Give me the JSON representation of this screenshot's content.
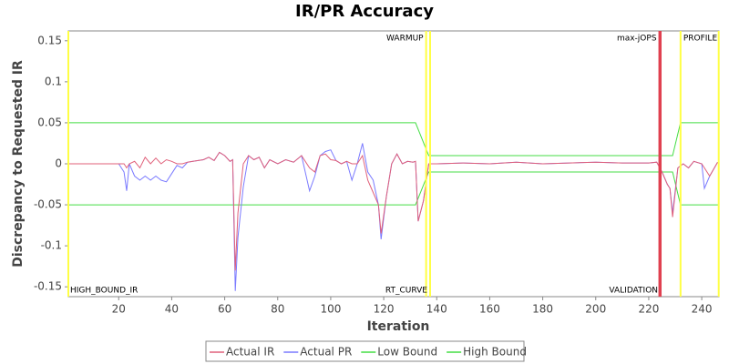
{
  "chart_data": {
    "type": "line",
    "title": "IR/PR Accuracy",
    "x_label": "Iteration",
    "y_label": "Discrepancy to Requested IR",
    "xlim": [
      1,
      246.5
    ],
    "ylim": [
      -0.162,
      0.162
    ],
    "xticks": [
      20,
      40,
      60,
      80,
      100,
      120,
      140,
      160,
      180,
      200,
      220,
      240
    ],
    "yticks": [
      0.15,
      0.1,
      0.05,
      0.0,
      -0.05,
      -0.1,
      -0.15
    ],
    "series": [
      {
        "name": "Actual IR",
        "color": "#e0607a",
        "x": [
          1,
          20,
          22,
          23,
          24,
          26,
          28,
          30,
          32,
          34,
          36,
          38,
          40,
          42,
          44,
          46,
          48,
          50,
          52,
          54,
          56,
          58,
          60,
          62,
          63,
          64,
          65,
          67,
          69,
          71,
          73,
          75,
          77,
          80,
          83,
          86,
          89,
          92,
          94,
          96,
          98,
          100,
          102,
          104,
          106,
          108,
          110,
          112,
          114,
          116,
          118,
          119,
          121,
          123,
          125,
          127,
          129,
          131,
          132,
          133,
          135,
          137,
          140,
          150,
          160,
          170,
          180,
          190,
          200,
          210,
          220,
          223,
          225,
          227,
          228,
          229,
          231,
          233,
          235,
          237,
          240,
          241,
          243,
          246
        ],
        "values": [
          0,
          0,
          0,
          -0.005,
          0,
          0.003,
          -0.005,
          0.008,
          0,
          0.007,
          0,
          0.005,
          0.003,
          0,
          0,
          0.002,
          0.003,
          0.004,
          0.005,
          0.008,
          0.004,
          0.014,
          0.01,
          0.003,
          0.005,
          -0.13,
          -0.06,
          0,
          0.01,
          0.005,
          0.008,
          -0.005,
          0.005,
          0,
          0.005,
          0.002,
          0.01,
          -0.005,
          -0.01,
          0.01,
          0.012,
          0.005,
          0.004,
          0,
          0.003,
          0,
          0,
          0.01,
          -0.02,
          -0.035,
          -0.05,
          -0.085,
          -0.04,
          0,
          0.012,
          0,
          0.003,
          0.002,
          0.003,
          -0.07,
          -0.045,
          0,
          0,
          0.001,
          0,
          0.002,
          0,
          0.001,
          0.002,
          0.001,
          0.001,
          0.002,
          -0.01,
          -0.025,
          -0.03,
          -0.065,
          -0.005,
          0,
          -0.005,
          0.003,
          0,
          -0.005,
          -0.015,
          0.002
        ]
      },
      {
        "name": "Actual PR",
        "color": "#7a7aff",
        "x": [
          1,
          20,
          22,
          23,
          24,
          26,
          28,
          30,
          32,
          34,
          36,
          38,
          40,
          42,
          44,
          46,
          48,
          50,
          52,
          54,
          56,
          58,
          60,
          62,
          63,
          64,
          65,
          67,
          69,
          71,
          73,
          75,
          77,
          80,
          83,
          86,
          89,
          92,
          94,
          96,
          98,
          100,
          102,
          104,
          106,
          108,
          110,
          112,
          114,
          116,
          118,
          119,
          121,
          123,
          125,
          127,
          129,
          131,
          132,
          133,
          135,
          137,
          140,
          150,
          160,
          170,
          180,
          190,
          200,
          210,
          220,
          223,
          225,
          227,
          228,
          229,
          231,
          233,
          235,
          237,
          240,
          241,
          243,
          246
        ],
        "values": [
          0,
          0,
          -0.01,
          -0.033,
          0,
          -0.015,
          -0.02,
          -0.015,
          -0.02,
          -0.015,
          -0.02,
          -0.022,
          -0.012,
          -0.002,
          -0.005,
          0.002,
          0.003,
          0.004,
          0.005,
          0.008,
          0.004,
          0.014,
          0.01,
          0.003,
          0.005,
          -0.155,
          -0.09,
          -0.028,
          0.01,
          0.005,
          0.008,
          -0.005,
          0.005,
          0,
          0.005,
          0.002,
          0.01,
          -0.033,
          -0.015,
          0.01,
          0.015,
          0.017,
          0.004,
          0,
          0.003,
          -0.02,
          0,
          0.025,
          -0.01,
          -0.02,
          -0.05,
          -0.092,
          -0.04,
          0,
          0.012,
          0,
          0.003,
          0.002,
          0.003,
          -0.07,
          -0.045,
          0,
          0,
          0.001,
          0,
          0.002,
          0,
          0.001,
          0.002,
          0.001,
          0.001,
          0.002,
          -0.01,
          -0.025,
          -0.03,
          -0.06,
          -0.005,
          0,
          -0.005,
          0.003,
          0,
          -0.03,
          -0.015,
          0.002
        ]
      },
      {
        "name": "Low Bound",
        "color": "#44dd44",
        "x": [
          1,
          132,
          137,
          229,
          232,
          246.5
        ],
        "values": [
          -0.05,
          -0.05,
          -0.01,
          -0.01,
          -0.05,
          -0.05
        ]
      },
      {
        "name": "High Bound",
        "color": "#44dd44",
        "x": [
          1,
          132,
          137,
          229,
          232,
          246.5
        ],
        "values": [
          0.05,
          0.05,
          0.01,
          0.01,
          0.05,
          0.05
        ]
      }
    ],
    "markers": [
      {
        "x": 1,
        "color": "#ffff44"
      },
      {
        "x": 136,
        "color": "#ffff44",
        "label": "WARMUP",
        "row": "top",
        "side": "left"
      },
      {
        "x": 137.5,
        "color": "#ffff44",
        "label": "RT_CURVE",
        "row": "bottom",
        "side": "left"
      },
      {
        "x": 224,
        "color": "#e04050",
        "label": "max-jOPS",
        "row": "top",
        "side": "left"
      },
      {
        "x": 224.5,
        "color": "#e04050",
        "label": "VALIDATION",
        "row": "bottom",
        "side": "left"
      },
      {
        "x": 232,
        "color": "#ffff44",
        "label": "PROFILE",
        "row": "top",
        "side": "right"
      },
      {
        "x": 246.4,
        "color": "#ffff44"
      }
    ],
    "corner_label": "HIGH_BOUND_IR"
  }
}
